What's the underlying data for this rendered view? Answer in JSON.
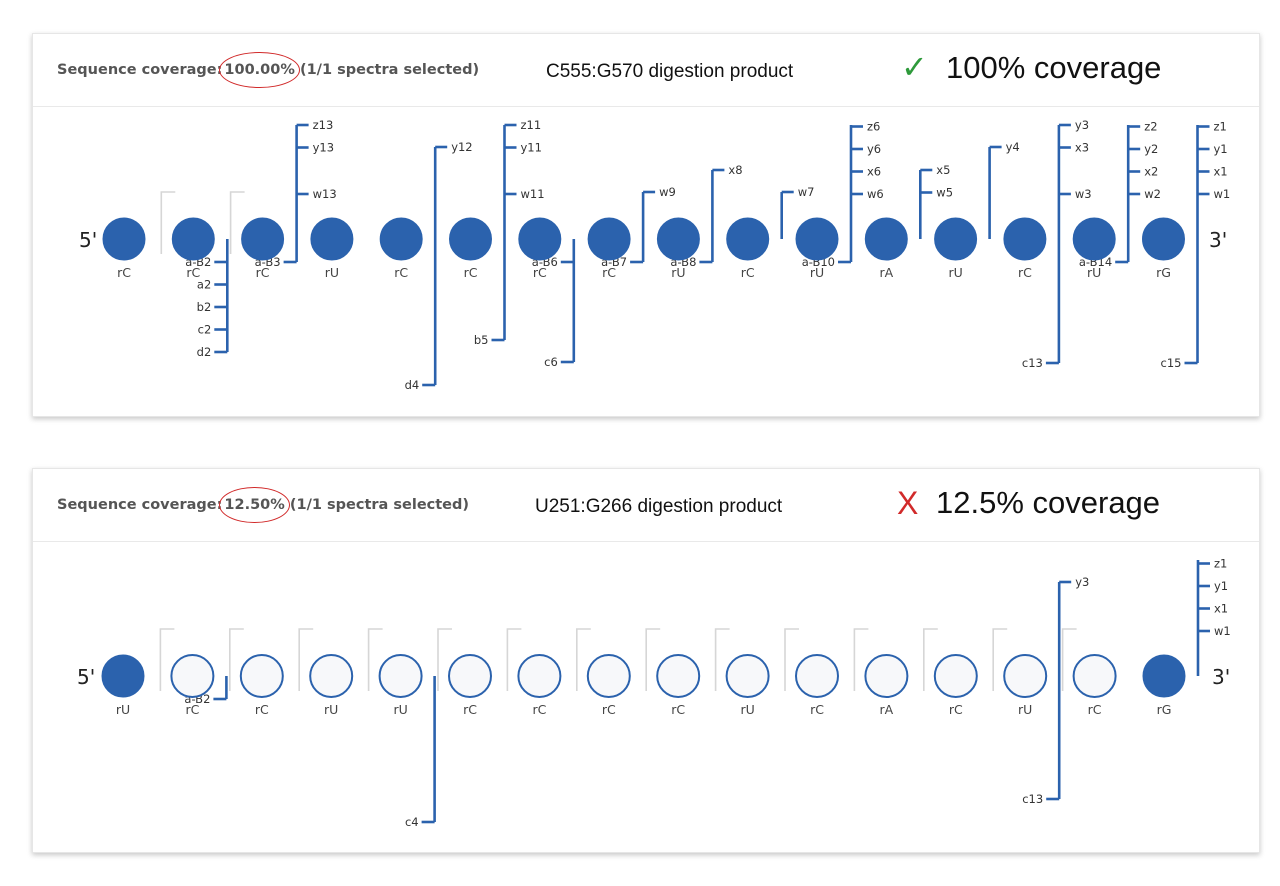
{
  "colors": {
    "accent": "#2b62ad",
    "check": "#2e9a3b",
    "cross": "#d12a2a",
    "bracket": "#d6d6d6"
  },
  "panels": [
    {
      "coverage_label": "Sequence coverage:",
      "coverage_value": "100.00%",
      "spectra": "(1/1 spectra selected)",
      "product": "C555:G570 digestion product",
      "status_mark": "✓",
      "status_text": "100% coverage",
      "end5": "5'",
      "end3": "3'",
      "nucleotides": [
        {
          "label": "rC",
          "filled": true
        },
        {
          "label": "rC",
          "filled": true
        },
        {
          "label": "rC",
          "filled": true
        },
        {
          "label": "rU",
          "filled": true
        },
        {
          "label": "rC",
          "filled": true
        },
        {
          "label": "rC",
          "filled": true
        },
        {
          "label": "rC",
          "filled": true
        },
        {
          "label": "rC",
          "filled": true
        },
        {
          "label": "rU",
          "filled": true
        },
        {
          "label": "rC",
          "filled": true
        },
        {
          "label": "rU",
          "filled": true
        },
        {
          "label": "rA",
          "filled": true
        },
        {
          "label": "rU",
          "filled": true
        },
        {
          "label": "rC",
          "filled": true
        },
        {
          "label": "rU",
          "filled": true
        },
        {
          "label": "rG",
          "filled": true
        }
      ],
      "brackets": [
        1,
        2
      ],
      "fragments": [
        {
          "after": 2,
          "top": [
            "z13",
            "y13",
            "w13"
          ],
          "bottom": [
            "a-B3"
          ]
        },
        {
          "after": 4,
          "top": [
            "y12"
          ],
          "bottom": [
            "d4"
          ]
        },
        {
          "after": 5,
          "top": [
            "z11",
            "y11",
            "w11"
          ],
          "bottom": [
            "b5"
          ]
        },
        {
          "after": 1,
          "top": [],
          "bottom": [
            "a-B2",
            "a2",
            "b2",
            "c2",
            "d2"
          ]
        },
        {
          "after": 7,
          "top": [
            "w9"
          ],
          "bottom": [
            "a-B7"
          ]
        },
        {
          "after": 8,
          "top": [
            "x8"
          ],
          "bottom": [
            "a-B8"
          ]
        },
        {
          "after": 6,
          "top": [],
          "bottom": [
            "a-B6",
            "c6"
          ]
        },
        {
          "after": 9,
          "top": [
            "w7"
          ],
          "bottom": []
        },
        {
          "after": 10,
          "top": [
            "z6",
            "y6",
            "x6",
            "w6"
          ],
          "bottom": [
            "a-B10"
          ]
        },
        {
          "after": 11,
          "top": [
            "x5",
            "w5"
          ],
          "bottom": []
        },
        {
          "after": 12,
          "top": [
            "y4"
          ],
          "bottom": []
        },
        {
          "after": 13,
          "top": [
            "y3",
            "x3",
            "w3"
          ],
          "bottom": [
            "c13"
          ]
        },
        {
          "after": 14,
          "top": [
            "z2",
            "y2",
            "x2",
            "w2"
          ],
          "bottom": [
            "a-B14"
          ]
        },
        {
          "after": 15,
          "top": [
            "z1",
            "y1",
            "x1",
            "w1"
          ],
          "bottom": [
            "c15"
          ]
        }
      ]
    },
    {
      "coverage_label": "Sequence coverage:",
      "coverage_value": "12.50%",
      "spectra": "(1/1 spectra selected)",
      "product": "U251:G266 digestion product",
      "status_mark": "X",
      "status_text": "12.5% coverage",
      "end5": "5'",
      "end3": "3'",
      "nucleotides": [
        {
          "label": "rU",
          "filled": true
        },
        {
          "label": "rC",
          "filled": false
        },
        {
          "label": "rC",
          "filled": false
        },
        {
          "label": "rU",
          "filled": false
        },
        {
          "label": "rU",
          "filled": false
        },
        {
          "label": "rC",
          "filled": false
        },
        {
          "label": "rC",
          "filled": false
        },
        {
          "label": "rC",
          "filled": false
        },
        {
          "label": "rC",
          "filled": false
        },
        {
          "label": "rU",
          "filled": false
        },
        {
          "label": "rC",
          "filled": false
        },
        {
          "label": "rA",
          "filled": false
        },
        {
          "label": "rC",
          "filled": false
        },
        {
          "label": "rU",
          "filled": false
        },
        {
          "label": "rC",
          "filled": false
        },
        {
          "label": "rG",
          "filled": true
        }
      ],
      "brackets": [
        1,
        2,
        3,
        4,
        5,
        6,
        7,
        8,
        9,
        10,
        11,
        12,
        13,
        14
      ],
      "fragments": [
        {
          "after": 1,
          "top": [],
          "bottom": [
            "a-B2"
          ]
        },
        {
          "after": 4,
          "top": [],
          "bottom": [
            "c4"
          ]
        },
        {
          "after": 13,
          "top": [
            "y3"
          ],
          "bottom": [
            "c13"
          ]
        },
        {
          "after": 15,
          "top": [
            "z1",
            "y1",
            "x1",
            "w1"
          ],
          "bottom": []
        }
      ]
    }
  ]
}
